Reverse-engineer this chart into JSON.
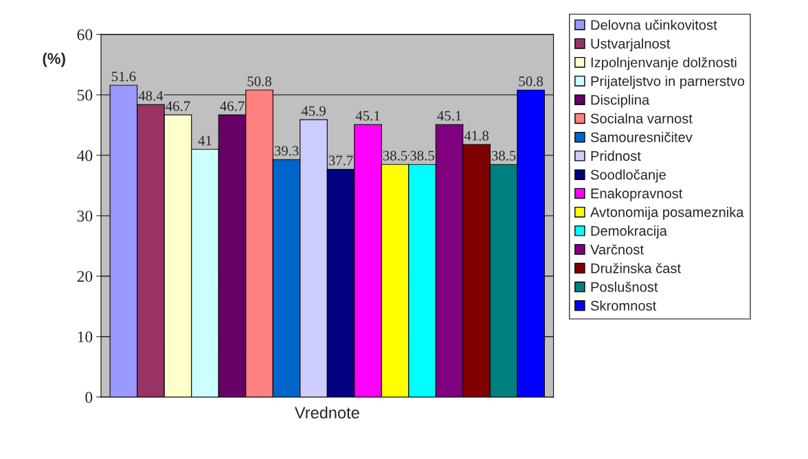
{
  "chart_data": {
    "type": "bar",
    "ylabel": "(%)",
    "categories": [
      "Vrednote"
    ],
    "ylim": [
      0,
      60
    ],
    "yticks": [
      0,
      10,
      20,
      30,
      40,
      50,
      60
    ],
    "grid": "y",
    "legend": "right",
    "data_labels": true,
    "series": [
      {
        "name": "Delovna učinkovitost",
        "color": "#9999ff",
        "values": [
          51.6
        ]
      },
      {
        "name": "Ustvarjalnost",
        "color": "#993366",
        "values": [
          48.4
        ]
      },
      {
        "name": "Izpolnjenvanje dolžnosti",
        "color": "#ffffcc",
        "values": [
          46.7
        ]
      },
      {
        "name": "Prijateljstvo in parnerstvo",
        "color": "#ccffff",
        "values": [
          41
        ]
      },
      {
        "name": "Disciplina",
        "color": "#660066",
        "values": [
          46.7
        ]
      },
      {
        "name": "Socialna varnost",
        "color": "#ff8080",
        "values": [
          50.8
        ]
      },
      {
        "name": "Samouresničitev",
        "color": "#0066cc",
        "values": [
          39.3
        ]
      },
      {
        "name": "Pridnost",
        "color": "#ccccff",
        "values": [
          45.9
        ]
      },
      {
        "name": "Soodločanje",
        "color": "#000080",
        "values": [
          37.7
        ]
      },
      {
        "name": "Enakopravnost",
        "color": "#ff00ff",
        "values": [
          45.1
        ]
      },
      {
        "name": "Avtonomija posameznika",
        "color": "#ffff00",
        "values": [
          38.5
        ]
      },
      {
        "name": "Demokracija",
        "color": "#00ffff",
        "values": [
          38.5
        ]
      },
      {
        "name": "Varčnost",
        "color": "#800080",
        "values": [
          45.1
        ]
      },
      {
        "name": "Družinska čast",
        "color": "#800000",
        "values": [
          41.8
        ]
      },
      {
        "name": "Poslušnost",
        "color": "#008080",
        "values": [
          38.5
        ]
      },
      {
        "name": "Skromnost",
        "color": "#0000ff",
        "values": [
          50.8
        ]
      }
    ]
  }
}
